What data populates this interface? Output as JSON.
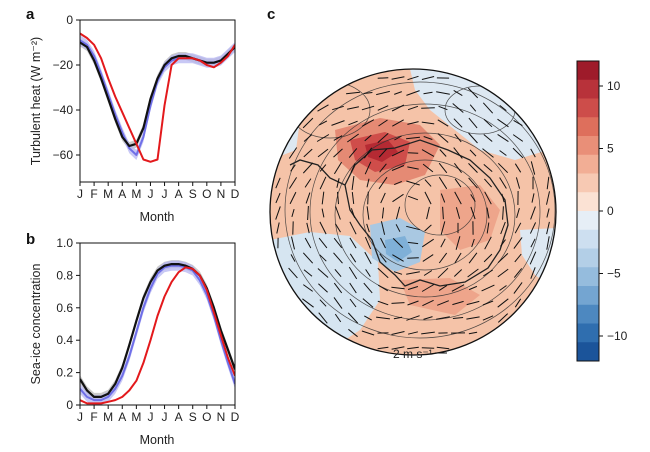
{
  "panels": {
    "a": "a",
    "b": "b",
    "c": "c"
  },
  "colors": {
    "black": "#111111",
    "blue": "#6f6fe8",
    "red": "#e3191c",
    "band_gray": "#b9b9b9",
    "band_blue": "#b6b6f2"
  },
  "chart_data": [
    {
      "type": "line",
      "panel": "a",
      "xlabel": "Month",
      "ylabel": "Turbulent heat (W m⁻²)",
      "categories": [
        "J",
        "F",
        "M",
        "A",
        "M",
        "J",
        "J",
        "A",
        "S",
        "O",
        "N",
        "D"
      ],
      "x": [
        0,
        0.5,
        1,
        1.5,
        2,
        2.5,
        3,
        3.5,
        4,
        4.5,
        5,
        5.5,
        6,
        6.5,
        7,
        7.5,
        8,
        8.5,
        9,
        9.5,
        10,
        10.5,
        11
      ],
      "ylim": [
        -72,
        0
      ],
      "yticks": [
        0,
        -20,
        -40,
        -60
      ],
      "series": [
        {
          "color": "black",
          "values": [
            -10,
            -12,
            -18,
            -26,
            -35,
            -44,
            -52,
            -56,
            -55,
            -48,
            -35,
            -26,
            -20,
            -17,
            -16,
            -16,
            -17,
            -18,
            -19,
            -19,
            -18,
            -15,
            -12
          ]
        },
        {
          "color": "blue",
          "values": [
            -9,
            -11,
            -16,
            -24,
            -33,
            -42,
            -50,
            -57,
            -60,
            -52,
            -38,
            -27,
            -21,
            -18,
            -17,
            -17,
            -17,
            -18,
            -19,
            -19,
            -18,
            -15,
            -12
          ]
        },
        {
          "color": "red",
          "values": [
            -6,
            -8,
            -11,
            -17,
            -26,
            -34,
            -41,
            -48,
            -55,
            -62,
            -63,
            -62,
            -38,
            -20,
            -17,
            -17,
            -17,
            -18,
            -20,
            -21,
            -19,
            -16,
            -11
          ]
        }
      ]
    },
    {
      "type": "line",
      "panel": "b",
      "xlabel": "Month",
      "ylabel": "Sea-ice concentration",
      "categories": [
        "J",
        "F",
        "M",
        "A",
        "M",
        "J",
        "J",
        "A",
        "S",
        "O",
        "N",
        "D"
      ],
      "x": [
        0,
        0.5,
        1,
        1.5,
        2,
        2.5,
        3,
        3.5,
        4,
        4.5,
        5,
        5.5,
        6,
        6.5,
        7,
        7.5,
        8,
        8.5,
        9,
        9.5,
        10,
        10.5,
        11
      ],
      "ylim": [
        0,
        1.0
      ],
      "yticks": [
        "0",
        "0.2",
        "0.4",
        "0.6",
        "0.8",
        "1.0"
      ],
      "series": [
        {
          "color": "black",
          "values": [
            0.16,
            0.09,
            0.05,
            0.05,
            0.07,
            0.13,
            0.23,
            0.37,
            0.52,
            0.66,
            0.76,
            0.83,
            0.86,
            0.87,
            0.87,
            0.86,
            0.84,
            0.8,
            0.72,
            0.6,
            0.46,
            0.34,
            0.22
          ]
        },
        {
          "color": "blue",
          "values": [
            0.1,
            0.05,
            0.03,
            0.03,
            0.05,
            0.1,
            0.18,
            0.3,
            0.45,
            0.6,
            0.72,
            0.81,
            0.85,
            0.86,
            0.86,
            0.85,
            0.83,
            0.77,
            0.68,
            0.55,
            0.4,
            0.26,
            0.13
          ]
        },
        {
          "color": "red",
          "values": [
            0.03,
            0.01,
            0.01,
            0.01,
            0.02,
            0.03,
            0.05,
            0.09,
            0.15,
            0.26,
            0.4,
            0.55,
            0.67,
            0.76,
            0.82,
            0.85,
            0.84,
            0.8,
            0.71,
            0.57,
            0.43,
            0.29,
            0.18
          ]
        }
      ]
    },
    {
      "type": "heatmap",
      "panel": "c",
      "colorbar": {
        "ticks": [
          "10",
          "5",
          "0",
          "−5",
          "−10"
        ],
        "range": [
          -12,
          12
        ]
      },
      "vector_scale_label": "2 m s⁻¹"
    }
  ]
}
